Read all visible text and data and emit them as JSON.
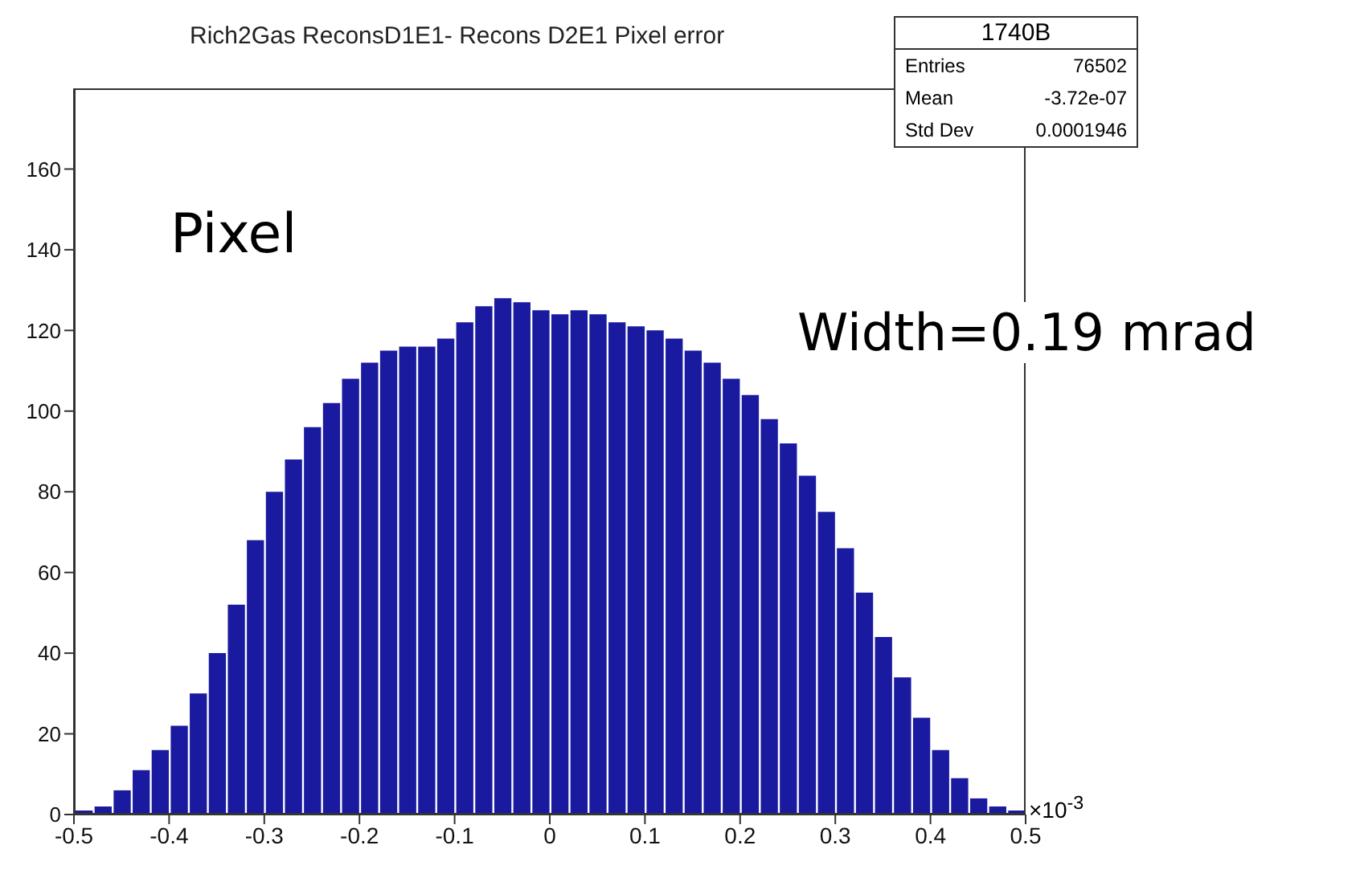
{
  "chart_data": {
    "type": "histogram",
    "title": "Rich2Gas ReconsD1E1- Recons D2E1 Pixel error",
    "bins": [
      -0.5,
      -0.48,
      -0.46,
      -0.44,
      -0.42,
      -0.4,
      -0.38,
      -0.36,
      -0.34,
      -0.32,
      -0.3,
      -0.28,
      -0.26,
      -0.24,
      -0.22,
      -0.2,
      -0.18,
      -0.16,
      -0.14,
      -0.12,
      -0.1,
      -0.08,
      -0.06,
      -0.04,
      -0.02,
      0,
      0.02,
      0.04,
      0.06,
      0.08,
      0.1,
      0.12,
      0.14,
      0.16,
      0.18,
      0.2,
      0.22,
      0.24,
      0.26,
      0.28,
      0.3,
      0.32,
      0.34,
      0.36,
      0.38,
      0.4,
      0.42,
      0.44,
      0.46,
      0.48,
      0.5
    ],
    "values": [
      1,
      2,
      6,
      11,
      16,
      22,
      30,
      40,
      52,
      68,
      80,
      88,
      96,
      102,
      108,
      112,
      115,
      116,
      116,
      118,
      122,
      126,
      128,
      127,
      125,
      124,
      125,
      124,
      122,
      121,
      120,
      118,
      115,
      112,
      108,
      104,
      98,
      92,
      84,
      75,
      66,
      55,
      44,
      34,
      24,
      16,
      9,
      4,
      2,
      1
    ],
    "color": "#1a1aa0",
    "xlim": [
      -0.5,
      0.5
    ],
    "xticks": [
      -0.5,
      -0.4,
      -0.3,
      -0.2,
      -0.1,
      0,
      0.1,
      0.2,
      0.3,
      0.4,
      0.5
    ],
    "ylim": [
      0,
      180
    ],
    "yticks": [
      0,
      20,
      40,
      60,
      80,
      100,
      120,
      140,
      160
    ],
    "grid": false,
    "legend": false,
    "annotations": [
      "1740B",
      "Entries",
      "76502",
      "Mean",
      "-3.72e-07",
      "Std Dev",
      "0.0001946",
      "×10$^{-3}$",
      "Pixel",
      "Width=0.19 mrad"
    ]
  }
}
